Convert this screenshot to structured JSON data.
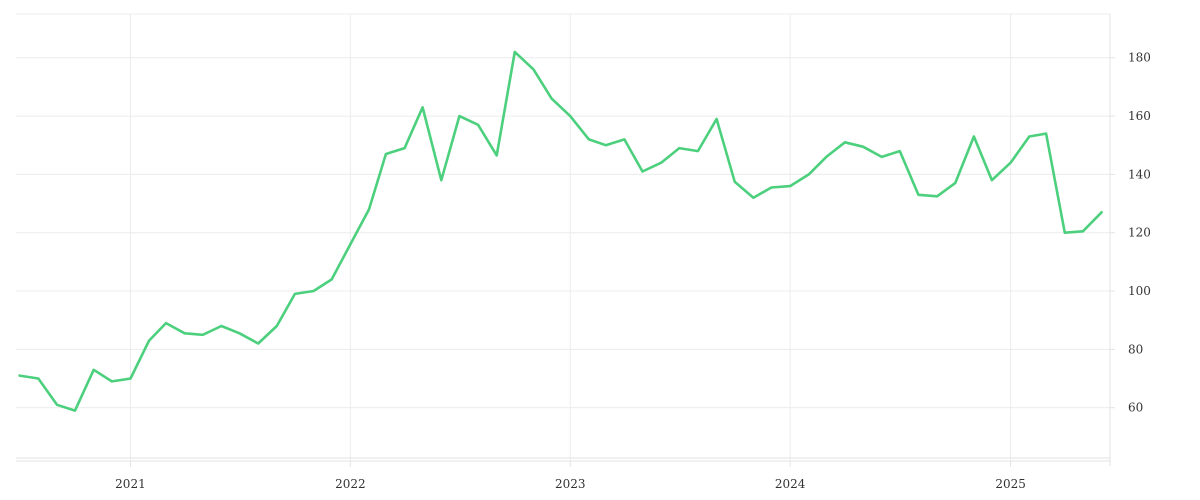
{
  "chart_data": {
    "type": "line",
    "title": "",
    "xlabel": "",
    "ylabel": "",
    "grid": true,
    "legend": "none",
    "x_axis": {
      "type": "date",
      "range": [
        "2020-06-25",
        "2025-06-15"
      ],
      "ticks": [
        {
          "date": "2021-01-01",
          "label": "2021"
        },
        {
          "date": "2022-01-01",
          "label": "2022"
        },
        {
          "date": "2023-01-01",
          "label": "2023"
        },
        {
          "date": "2024-01-01",
          "label": "2024"
        },
        {
          "date": "2025-01-01",
          "label": "2025"
        }
      ]
    },
    "y_axis": {
      "position": "right",
      "range": [
        40,
        195
      ],
      "ticks": [
        60,
        80,
        100,
        120,
        140,
        160,
        180
      ]
    },
    "series": [
      {
        "name": "",
        "color": "#4cd07d",
        "points": [
          [
            "2020-07-01",
            71
          ],
          [
            "2020-08-01",
            70
          ],
          [
            "2020-09-01",
            61
          ],
          [
            "2020-10-01",
            59
          ],
          [
            "2020-11-01",
            73
          ],
          [
            "2020-12-01",
            69
          ],
          [
            "2021-01-01",
            70
          ],
          [
            "2021-02-01",
            83
          ],
          [
            "2021-03-01",
            89
          ],
          [
            "2021-04-01",
            85.5
          ],
          [
            "2021-05-01",
            85
          ],
          [
            "2021-06-01",
            88
          ],
          [
            "2021-07-01",
            85.5
          ],
          [
            "2021-08-01",
            82
          ],
          [
            "2021-09-01",
            88
          ],
          [
            "2021-10-01",
            99
          ],
          [
            "2021-11-01",
            100
          ],
          [
            "2021-12-01",
            104
          ],
          [
            "2022-01-01",
            116
          ],
          [
            "2022-02-01",
            128
          ],
          [
            "2022-03-01",
            147
          ],
          [
            "2022-04-01",
            149
          ],
          [
            "2022-05-01",
            163
          ],
          [
            "2022-06-01",
            138
          ],
          [
            "2022-07-01",
            160
          ],
          [
            "2022-08-01",
            157
          ],
          [
            "2022-09-01",
            146.5
          ],
          [
            "2022-10-01",
            182
          ],
          [
            "2022-11-01",
            176
          ],
          [
            "2022-12-01",
            166
          ],
          [
            "2023-01-01",
            160
          ],
          [
            "2023-02-01",
            152
          ],
          [
            "2023-03-01",
            150
          ],
          [
            "2023-04-01",
            152
          ],
          [
            "2023-05-01",
            141
          ],
          [
            "2023-06-01",
            144
          ],
          [
            "2023-07-01",
            149
          ],
          [
            "2023-08-01",
            148
          ],
          [
            "2023-09-01",
            159
          ],
          [
            "2023-10-01",
            137.5
          ],
          [
            "2023-11-01",
            132
          ],
          [
            "2023-12-01",
            135.5
          ],
          [
            "2024-01-01",
            136
          ],
          [
            "2024-02-01",
            140
          ],
          [
            "2024-03-01",
            146
          ],
          [
            "2024-04-01",
            151
          ],
          [
            "2024-05-01",
            149.5
          ],
          [
            "2024-06-01",
            146
          ],
          [
            "2024-07-01",
            148
          ],
          [
            "2024-08-01",
            133
          ],
          [
            "2024-09-01",
            132.5
          ],
          [
            "2024-10-01",
            137
          ],
          [
            "2024-11-01",
            153
          ],
          [
            "2024-12-01",
            138
          ],
          [
            "2025-01-01",
            144
          ],
          [
            "2025-02-01",
            153
          ],
          [
            "2025-03-01",
            154
          ],
          [
            "2025-04-01",
            120
          ],
          [
            "2025-05-01",
            120.5
          ],
          [
            "2025-06-01",
            127
          ]
        ]
      }
    ]
  }
}
